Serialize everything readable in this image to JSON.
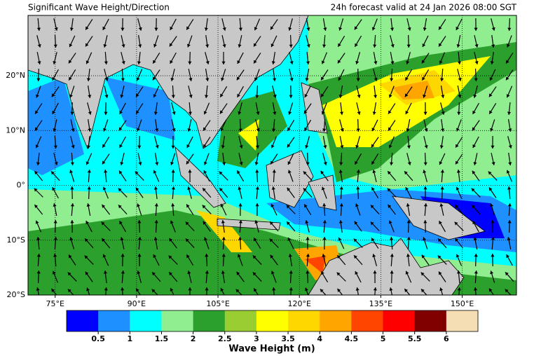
{
  "chart_data": {
    "type": "map",
    "title": "Significant Wave Height/Direction",
    "subtitle": "24h forecast valid at 24 Jan 2026 08:00 SGT",
    "xlim": [
      70,
      160
    ],
    "ylim": [
      -20,
      31
    ],
    "xticks": [
      {
        "value": 75,
        "label": "75°E"
      },
      {
        "value": 90,
        "label": "90°E"
      },
      {
        "value": 105,
        "label": "105°E"
      },
      {
        "value": 120,
        "label": "120°E"
      },
      {
        "value": 135,
        "label": "135°E"
      },
      {
        "value": 150,
        "label": "150°E"
      }
    ],
    "yticks": [
      {
        "value": 20,
        "label": "20°N"
      },
      {
        "value": 10,
        "label": "10°N"
      },
      {
        "value": 0,
        "label": "0°"
      },
      {
        "value": -10,
        "label": "10°S"
      },
      {
        "value": -20,
        "label": "20°S"
      }
    ],
    "grid": true,
    "colorbar": {
      "label": "Wave Height (m)",
      "ticks": [
        0.5,
        1,
        1.5,
        2,
        2.5,
        3,
        3.5,
        4,
        4.5,
        5,
        5.5,
        6
      ],
      "colors": [
        "#0000ff",
        "#1e90ff",
        "#00ffff",
        "#90ee90",
        "#2ca02c",
        "#9acd32",
        "#ffff00",
        "#ffd700",
        "#ffa500",
        "#ff4500",
        "#ff0000",
        "#800000",
        "#f5deb3"
      ]
    }
  }
}
